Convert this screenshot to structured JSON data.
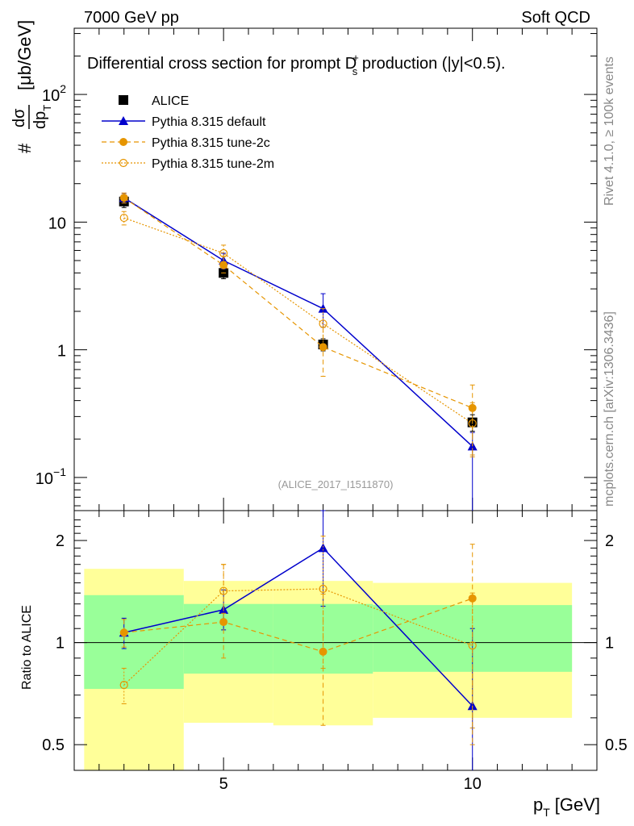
{
  "header": {
    "energy_label": "7000 GeV pp",
    "process_label": "Soft QCD"
  },
  "side_labels": {
    "rivet": "Rivet 4.1.0, ≥ 100k events",
    "site": "mcplots.cern.ch [arXiv:1306.3436]"
  },
  "chart_data": [
    {
      "type": "line",
      "panel": "main",
      "title_pre": "Differential cross section for prompt D",
      "title_sup": "+",
      "title_sub": "s",
      "title_post": " production (|y|<0.5).",
      "analysis_id": "(ALICE_2017_I1511870)",
      "ylabel": "# dσ/dp_T [μb/GeV]",
      "ylabel_num": "dσ",
      "ylabel_den": "dp",
      "ylabel_den_sub": "T",
      "ylabel_hash": "#",
      "ylabel_units": "[μb/GeV]",
      "yscale": "log",
      "ylim": [
        0.055,
        330
      ],
      "xlim": [
        2,
        12.5
      ],
      "yticks": [
        {
          "value": 0.1,
          "base": "10",
          "exp": "−1"
        },
        {
          "value": 1,
          "base": "1",
          "exp": ""
        },
        {
          "value": 10,
          "base": "10",
          "exp": ""
        },
        {
          "value": 100,
          "base": "10",
          "exp": "2"
        }
      ],
      "legend_position": "top-left",
      "series": [
        {
          "name": "ALICE",
          "style": "data",
          "color": "#000000",
          "x": [
            3,
            5,
            7,
            10
          ],
          "y": [
            14.5,
            4.0,
            1.1,
            0.27
          ],
          "err_low": [
            1.5,
            0.4,
            0.12,
            0.04
          ],
          "err_high": [
            1.5,
            0.4,
            0.12,
            0.04
          ]
        },
        {
          "name": "Pythia 8.315 default",
          "style": "solid",
          "marker": "triangle",
          "color": "#0000cc",
          "x": [
            3,
            5,
            7,
            10
          ],
          "y": [
            15.5,
            5.0,
            2.1,
            0.175
          ],
          "err_low": [
            1.3,
            0.7,
            0.6,
            0.175
          ],
          "err_high": [
            1.3,
            0.7,
            0.65,
            0.05
          ]
        },
        {
          "name": "Pythia 8.315 tune-2c",
          "style": "dashed",
          "marker": "filled-circle",
          "color": "#e69500",
          "x": [
            3,
            5,
            7,
            10
          ],
          "y": [
            15.5,
            4.6,
            1.05,
            0.35
          ],
          "err_low": [
            1.4,
            0.6,
            0.43,
            0.2
          ],
          "err_high": [
            1.4,
            0.8,
            0.45,
            0.18
          ]
        },
        {
          "name": "Pythia 8.315 tune-2m",
          "style": "dotted",
          "marker": "open-circle",
          "color": "#e69500",
          "x": [
            3,
            5,
            7,
            10
          ],
          "y": [
            10.8,
            5.7,
            1.6,
            0.265
          ],
          "err_low": [
            1.3,
            0.8,
            0.5,
            0.12
          ],
          "err_high": [
            1.3,
            0.9,
            0.5,
            0.12
          ]
        }
      ]
    },
    {
      "type": "line",
      "panel": "ratio",
      "ylabel": "Ratio to ALICE",
      "xlabel_main": "p",
      "xlabel_sub": "T",
      "xlabel_units": "[GeV]",
      "yscale": "log",
      "ylim": [
        0.42,
        2.45
      ],
      "xlim": [
        2,
        12.5
      ],
      "yticks": [
        {
          "value": 0.5,
          "label": "0.5"
        },
        {
          "value": 1,
          "label": "1"
        },
        {
          "value": 2,
          "label": "2"
        }
      ],
      "xticks": [
        {
          "value": 5,
          "label": "5"
        },
        {
          "value": 10,
          "label": "10"
        }
      ],
      "bands": [
        {
          "x0": 2.2,
          "x1": 4.2,
          "yellow": [
            0.42,
            1.65
          ],
          "green": [
            0.73,
            1.38
          ]
        },
        {
          "x0": 4.2,
          "x1": 6.0,
          "yellow": [
            0.58,
            1.52
          ],
          "green": [
            0.81,
            1.3
          ]
        },
        {
          "x0": 6.0,
          "x1": 8.0,
          "yellow": [
            0.57,
            1.52
          ],
          "green": [
            0.81,
            1.3
          ]
        },
        {
          "x0": 8.0,
          "x1": 12.0,
          "yellow": [
            0.6,
            1.5
          ],
          "green": [
            0.82,
            1.29
          ]
        }
      ],
      "series": [
        {
          "name": "Pythia 8.315 default",
          "style": "solid",
          "marker": "triangle",
          "color": "#0000cc",
          "x": [
            3,
            5,
            7,
            10
          ],
          "y": [
            1.07,
            1.25,
            1.9,
            0.65
          ],
          "err_low": [
            0.11,
            0.16,
            0.62,
            0.23
          ],
          "err_high": [
            0.11,
            0.18,
            0.55,
            0.45
          ]
        },
        {
          "name": "Pythia 8.315 tune-2c",
          "style": "dashed",
          "marker": "filled-circle",
          "color": "#e69500",
          "x": [
            3,
            5,
            7,
            10
          ],
          "y": [
            1.07,
            1.15,
            0.94,
            1.35
          ],
          "err_low": [
            0.1,
            0.25,
            0.37,
            0.85
          ],
          "err_high": [
            0.1,
            0.55,
            0.45,
            0.6
          ]
        },
        {
          "name": "Pythia 8.315 tune-2m",
          "style": "dotted",
          "marker": "open-circle",
          "color": "#e69500",
          "x": [
            3,
            5,
            7,
            10
          ],
          "y": [
            0.75,
            1.42,
            1.44,
            0.98
          ],
          "err_low": [
            0.09,
            0.2,
            0.6,
            0.42
          ],
          "err_high": [
            0.09,
            0.28,
            0.62,
            0.42
          ]
        }
      ]
    }
  ]
}
